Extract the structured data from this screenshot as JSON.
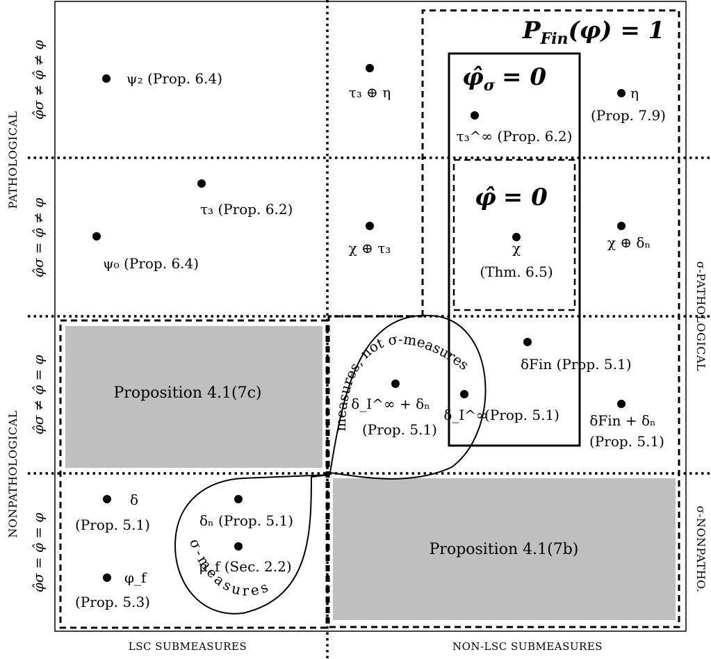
{
  "axes": {
    "bottom_left": "LSC SUBMEASURES",
    "bottom_right": "NON-LSC SUBMEASURES",
    "left_top": "PATHOLOGICAL",
    "left_bottom": "NONPATHOLOGICAL",
    "right_top": "σ-PATHOLOGICAL",
    "right_bottom": "σ-NONPATHO."
  },
  "rows": {
    "row1": "φ̂σ ≠ φ̂ ≠ φ",
    "row2": "φ̂σ = φ̂ ≠ φ",
    "row3": "φ̂σ ≠ φ̂ = φ",
    "row4": "φ̂σ = φ̂ = φ"
  },
  "regions": {
    "pfin": "P",
    "pfin_sub": "Fin",
    "pfin_rest": "(φ) = 1",
    "phi_sigma_zero": "φ̂",
    "phi_sigma_zero_sub": "σ",
    "phi_sigma_zero_rest": "= 0",
    "phi_zero": "φ̂",
    "phi_zero_rest": "= 0",
    "measures_not_sigma": "measures, not σ-measures",
    "sigma_measures": "σ-measures",
    "prop_7c": "Proposition 4.1(7c)",
    "prop_7b": "Proposition 4.1(7b)"
  },
  "points": {
    "psi2": "ψ₂ (Prop. 6.4)",
    "tau3_eta": "τ₃ ⊕ η",
    "eta": "η",
    "eta_ref": "(Prop. 7.9)",
    "tau3inf": "τ₃^∞ (Prop. 6.2)",
    "tau3": "τ₃ (Prop. 6.2)",
    "psi0": "ψ₀ (Prop. 6.4)",
    "chi_tau3": "χ ⊕ τ₃",
    "chi": "χ",
    "chi_ref": "(Thm. 6.5)",
    "chi_deltan": "χ ⊕ δₙ",
    "deltaFin": "δFin (Prop. 5.1)",
    "deltaIinf_deltan": "δ_I^∞ + δₙ",
    "deltaIinf_deltan_ref": "(Prop. 5.1)",
    "deltaIinf": "δ_I^∞",
    "deltaIinf_ref": "(Prop. 5.1)",
    "deltaFin_deltan": "δFin + δₙ",
    "deltaFin_deltan_ref": "(Prop. 5.1)",
    "delta": "δ",
    "delta_ref": "(Prop. 5.1)",
    "deltan": "δₙ (Prop. 5.1)",
    "muf": "μ_f (Sec. 2.2)",
    "phif": "φ_f",
    "phif_ref": "(Prop. 5.3)"
  }
}
